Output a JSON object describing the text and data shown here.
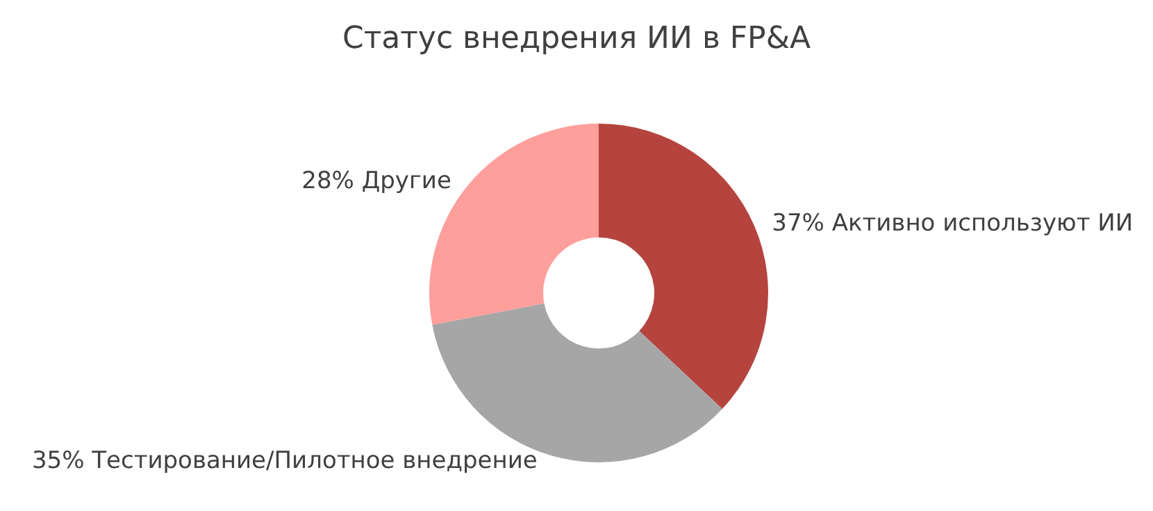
{
  "chart_data": {
    "type": "donut",
    "title": "Статус внедрения ИИ в FP&A",
    "categories": [
      "Активно используют ИИ",
      "Тестирование/Пилотное внедрение",
      "Другие"
    ],
    "values": [
      37,
      35,
      28
    ],
    "colors": [
      "#b5443f",
      "#a6a6a6",
      "#ff9f9c"
    ],
    "value_labels": [
      "37%",
      "35%",
      "28%"
    ],
    "legend": false
  }
}
